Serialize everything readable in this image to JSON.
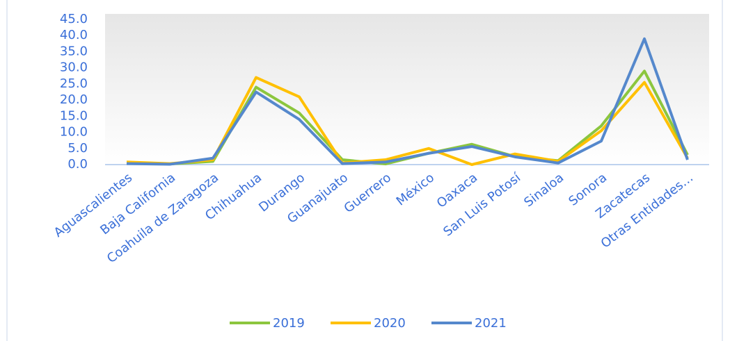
{
  "chart_data": {
    "type": "line",
    "categories": [
      "Aguascalientes",
      "Baja California",
      "Coahuila de Zaragoza",
      "Chihuahua",
      "Durango",
      "Guanajuato",
      "Guerrero",
      "México",
      "Oaxaca",
      "San Luis Potosí",
      "Sinaloa",
      "Sonora",
      "Zacatecas",
      "Otras Entidades…"
    ],
    "series": [
      {
        "name": "2019",
        "color": "#8cc63e",
        "values": [
          0.5,
          0.2,
          1,
          24,
          16,
          1.5,
          0.2,
          3.5,
          6.3,
          2.5,
          1.2,
          12,
          29,
          3
        ]
      },
      {
        "name": "2020",
        "color": "#ffc000",
        "values": [
          0.8,
          0.3,
          1.5,
          27,
          21,
          0.5,
          1.5,
          5,
          0,
          3.3,
          1,
          10.5,
          25.5,
          2
        ]
      },
      {
        "name": "2021",
        "color": "#5588cc",
        "values": [
          0.3,
          0.1,
          2,
          22.5,
          14,
          0.3,
          0.8,
          3.5,
          5.6,
          2.4,
          0.5,
          7.3,
          39,
          1.5
        ]
      }
    ],
    "ylim": [
      0,
      45
    ],
    "yticks": [
      {
        "value": 0,
        "label": "0.0"
      },
      {
        "value": 5,
        "label": "5.0"
      },
      {
        "value": 10,
        "label": "10.0"
      },
      {
        "value": 15,
        "label": "15.0"
      },
      {
        "value": 20,
        "label": "20.0"
      },
      {
        "value": 25,
        "label": "25.0"
      },
      {
        "value": 30,
        "label": "30.0"
      },
      {
        "value": 35,
        "label": "35.0"
      },
      {
        "value": 40,
        "label": "40.0"
      },
      {
        "value": 45,
        "label": "45.0"
      }
    ],
    "legend": "bottom"
  }
}
